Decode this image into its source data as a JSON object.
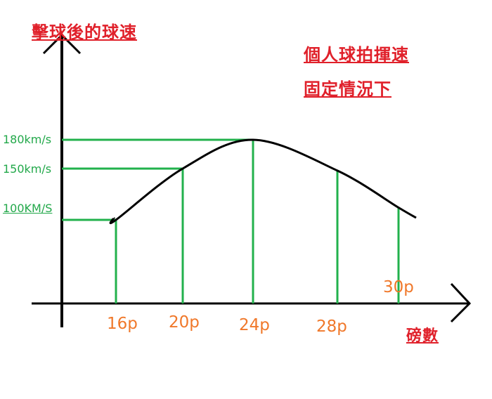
{
  "chart_data": {
    "type": "line",
    "title": "",
    "ylabel": "擊球後的球速",
    "xlabel": "磅數",
    "annotations": [
      "個人球拍揮速",
      "固定情況下"
    ],
    "categories": [
      "16p",
      "20p",
      "24p",
      "28p",
      "30p"
    ],
    "values": [
      100,
      150,
      180,
      148,
      112
    ],
    "y_tick_labels": [
      "180km/s",
      "150km/s",
      "100KM/S"
    ],
    "y_tick_values": [
      180,
      150,
      100
    ],
    "grid": false,
    "colors": {
      "axis": "#000000",
      "curve": "#000000",
      "guides": "#22b14c",
      "ytick": "#22a84a",
      "xtick": "#f0782a",
      "titles": "#e0202a"
    }
  }
}
